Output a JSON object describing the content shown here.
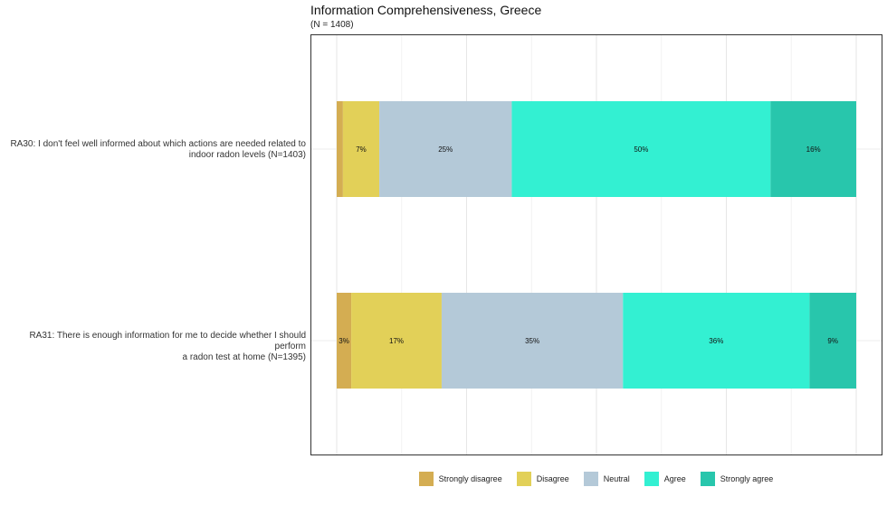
{
  "chart_data": {
    "type": "bar",
    "orientation": "horizontal-stacked",
    "title": "Information Comprehensiveness, Greece",
    "subtitle": "(N = 1408)",
    "xlim": [
      0,
      100
    ],
    "grid": true,
    "legend_position": "bottom",
    "categories": [
      "RA30: I don't feel well informed about which actions are needed related to indoor radon levels (N=1403)",
      "RA31: There is enough information for me to decide whether I should perform a radon test at home (N=1395)"
    ],
    "category_lines": [
      [
        "RA30: I don't feel well informed about which actions are needed related to",
        "indoor radon levels (N=1403)"
      ],
      [
        "RA31: There is enough information for me to decide whether I should perform",
        "a radon test at home (N=1395)"
      ]
    ],
    "series": [
      {
        "name": "Strongly disagree",
        "color": "#d4ad52",
        "values": [
          1.2,
          2.8
        ],
        "labels": [
          "",
          "3%"
        ]
      },
      {
        "name": "Disagree",
        "color": "#e2d058",
        "values": [
          7,
          17.4
        ],
        "labels": [
          "7%",
          "17%"
        ]
      },
      {
        "name": "Neutral",
        "color": "#b4c9d8",
        "values": [
          25.5,
          34.9
        ],
        "labels": [
          "25%",
          "35%"
        ]
      },
      {
        "name": "Agree",
        "color": "#33f0d2",
        "values": [
          49.8,
          35.9
        ],
        "labels": [
          "50%",
          "36%"
        ]
      },
      {
        "name": "Strongly agree",
        "color": "#28c6ac",
        "values": [
          16.5,
          9
        ],
        "labels": [
          "16%",
          "9%"
        ]
      }
    ]
  }
}
